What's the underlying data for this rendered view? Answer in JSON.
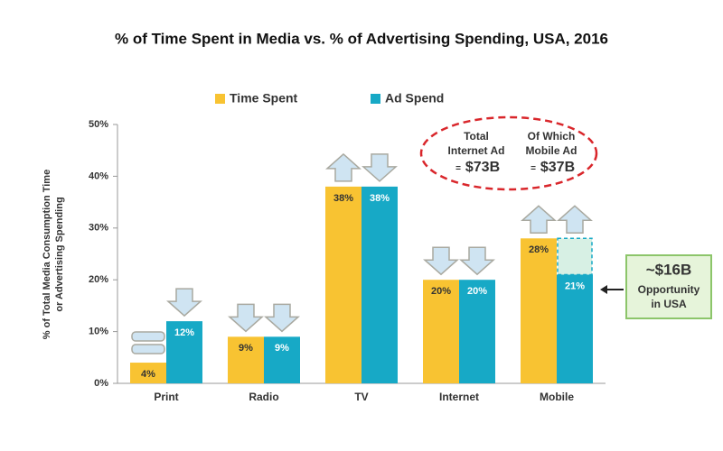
{
  "chart_data": {
    "type": "bar",
    "title": "% of Time Spent in Media vs. % of Advertising Spending, USA, 2016",
    "y_label": [
      "% of Total Media Consumption Time",
      "or Advertising Spending"
    ],
    "categories": [
      "Print",
      "Radio",
      "TV",
      "Internet",
      "Mobile"
    ],
    "series": [
      {
        "name": "Time Spent",
        "color": "#f8c332",
        "values": [
          4,
          9,
          38,
          20,
          28
        ],
        "value_labels": [
          "4%",
          "9%",
          "38%",
          "20%",
          "28%"
        ]
      },
      {
        "name": "Ad Spend",
        "color": "#17a9c6",
        "values": [
          12,
          9,
          38,
          20,
          21
        ],
        "value_labels": [
          "12%",
          "9%",
          "38%",
          "20%",
          "21%"
        ]
      }
    ],
    "ylim": [
      0,
      50
    ],
    "yticks": [
      {
        "value": 0,
        "label": "0%"
      },
      {
        "value": 10,
        "label": "10%"
      },
      {
        "value": 20,
        "label": "20%"
      },
      {
        "value": 30,
        "label": "30%"
      },
      {
        "value": 40,
        "label": "40%"
      },
      {
        "value": 50,
        "label": "50%"
      }
    ],
    "grid": false,
    "annotations": {
      "internet_total": [
        "Total",
        "Internet Ad",
        "=",
        "$73B"
      ],
      "mobile_total": [
        "Of Which",
        "Mobile Ad",
        "=",
        "$37B"
      ],
      "opportunity": [
        "~$16B",
        "Opportunity",
        "in USA"
      ]
    }
  }
}
